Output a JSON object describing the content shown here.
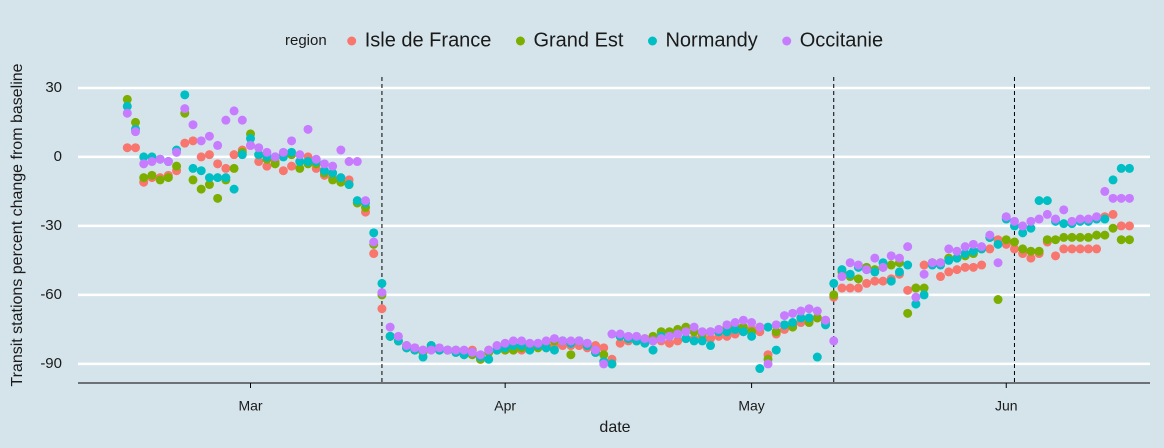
{
  "chart_data": {
    "type": "scatter",
    "xlabel": "date",
    "ylabel": "Transit stations percent change from baseline",
    "legend_title": "region",
    "x": [
      -15,
      -14,
      -13,
      -12,
      -11,
      -10,
      -9,
      -8,
      -7,
      -6,
      -5,
      -4,
      -3,
      -2,
      -1,
      0,
      1,
      2,
      3,
      4,
      5,
      6,
      7,
      8,
      9,
      10,
      11,
      12,
      13,
      14,
      15,
      16,
      17,
      18,
      19,
      20,
      21,
      22,
      23,
      24,
      25,
      26,
      27,
      28,
      29,
      30,
      31,
      32,
      33,
      34,
      35,
      36,
      37,
      38,
      39,
      40,
      41,
      42,
      43,
      44,
      45,
      46,
      47,
      48,
      49,
      50,
      51,
      52,
      53,
      54,
      55,
      56,
      57,
      58,
      59,
      60,
      61,
      62,
      63,
      64,
      65,
      66,
      67,
      68,
      69,
      70,
      71,
      72,
      73,
      74,
      75,
      76,
      77,
      78,
      79,
      80,
      81,
      82,
      83,
      84,
      85,
      86,
      87,
      88,
      89,
      90,
      91,
      92,
      93,
      94,
      95,
      96,
      97,
      98,
      99,
      100,
      101,
      102,
      103,
      104,
      105,
      106,
      107
    ],
    "series": [
      {
        "name": "Isle de France",
        "color": "#F8766D",
        "values": [
          4,
          4,
          -11,
          -9,
          -9,
          -8,
          -6,
          6,
          7,
          0,
          1,
          -3,
          -5,
          1,
          3,
          5,
          -2,
          -4,
          -2,
          -6,
          -4,
          -2,
          0,
          -5,
          -8,
          -9,
          -10,
          -10,
          -20,
          -24,
          -42,
          -66,
          -78,
          -80,
          -82,
          -83,
          -84,
          -83,
          -84,
          -84,
          -85,
          -86,
          -84,
          -88,
          -84,
          -84,
          -84,
          -84,
          -84,
          -83,
          -82,
          -83,
          -82,
          -82,
          -82,
          -82,
          -83,
          -82,
          -83,
          -88,
          -81,
          -80,
          -80,
          -80,
          -80,
          -80,
          -81,
          -80,
          -79,
          -79,
          -78,
          -79,
          -78,
          -78,
          -77,
          -76,
          -75,
          -76,
          -86,
          -77,
          -75,
          -73,
          -72,
          -71,
          -70,
          -71,
          -61,
          -57,
          -57,
          -57,
          -55,
          -54,
          -54,
          -53,
          -51,
          -58,
          -57,
          -47,
          -46,
          -52,
          -50,
          -49,
          -48,
          -48,
          -47,
          -40,
          -36,
          -38,
          -40,
          -42,
          -44,
          -42,
          -37,
          -43,
          -40,
          -40,
          -40,
          -40,
          -40,
          -26,
          -25,
          -30,
          -30
        ]
      },
      {
        "name": "Grand Est",
        "color": "#7CAE00",
        "values": [
          25,
          15,
          -9,
          -8,
          -10,
          -9,
          -4,
          19,
          -10,
          -14,
          -12,
          -18,
          -10,
          -5,
          2,
          10,
          1,
          -1,
          -3,
          1,
          1,
          -5,
          -3,
          -3,
          -7,
          -10,
          -11,
          -12,
          -20,
          -22,
          -38,
          -60,
          -78,
          -80,
          -83,
          -84,
          -85,
          -82,
          -84,
          -84,
          -84,
          -85,
          -86,
          -88,
          -85,
          -84,
          -84,
          -84,
          -83,
          -82,
          -83,
          -82,
          -80,
          -80,
          -86,
          -80,
          -82,
          -85,
          -86,
          -90,
          -78,
          -79,
          -79,
          -79,
          -78,
          -76,
          -76,
          -75,
          -74,
          -76,
          -77,
          -76,
          -76,
          -74,
          -73,
          -74,
          -76,
          -74,
          -88,
          -76,
          -73,
          -74,
          -70,
          -72,
          -70,
          -72,
          -60,
          -50,
          -52,
          -53,
          -48,
          -49,
          -48,
          -47,
          -46,
          -68,
          -57,
          -57,
          -46,
          -46,
          -44,
          -44,
          -43,
          -42,
          -40,
          -35,
          -62,
          -36,
          -37,
          -40,
          -41,
          -41,
          -36,
          -36,
          -35,
          -35,
          -35,
          -35,
          -34,
          -34,
          -31,
          -36,
          -36
        ]
      },
      {
        "name": "Normandy",
        "color": "#00BFC4",
        "values": [
          22,
          12,
          0,
          0,
          -1,
          -2,
          3,
          27,
          -5,
          -6,
          -9,
          -9,
          -9,
          -14,
          1,
          8,
          1,
          0,
          0,
          0,
          2,
          -2,
          -2,
          -2,
          -6,
          -7,
          -9,
          -12,
          -19,
          -20,
          -33,
          -55,
          -78,
          -80,
          -83,
          -84,
          -87,
          -82,
          -84,
          -84,
          -85,
          -86,
          -85,
          -87,
          -88,
          -84,
          -83,
          -82,
          -82,
          -84,
          -82,
          -83,
          -84,
          -80,
          -81,
          -80,
          -82,
          -85,
          -89,
          -90,
          -78,
          -79,
          -80,
          -81,
          -84,
          -78,
          -78,
          -77,
          -79,
          -80,
          -80,
          -82,
          -76,
          -76,
          -75,
          -76,
          -78,
          -92,
          -74,
          -84,
          -73,
          -72,
          -70,
          -70,
          -87,
          -73,
          -55,
          -49,
          -51,
          -48,
          -49,
          -50,
          -46,
          -54,
          -50,
          -47,
          -64,
          -60,
          -47,
          -47,
          -45,
          -44,
          -42,
          -41,
          -40,
          -35,
          -38,
          -27,
          -30,
          -33,
          -31,
          -19,
          -19,
          -28,
          -29,
          -29,
          -28,
          -28,
          -27,
          -27,
          -10,
          -5,
          -5
        ]
      },
      {
        "name": "Occitanie",
        "color": "#C77CFF",
        "values": [
          19,
          11,
          -3,
          -2,
          -1,
          -2,
          2,
          21,
          14,
          7,
          9,
          5,
          16,
          20,
          16,
          5,
          4,
          2,
          0,
          2,
          7,
          1,
          12,
          -1,
          -3,
          -4,
          3,
          -2,
          -2,
          -19,
          -37,
          -59,
          -74,
          -78,
          -82,
          -83,
          -84,
          -84,
          -83,
          -84,
          -84,
          -84,
          -85,
          -86,
          -84,
          -82,
          -81,
          -80,
          -80,
          -81,
          -81,
          -80,
          -79,
          -80,
          -80,
          -80,
          -81,
          -84,
          -90,
          -77,
          -77,
          -78,
          -78,
          -79,
          -80,
          -79,
          -78,
          -77,
          -76,
          -74,
          -76,
          -76,
          -75,
          -73,
          -72,
          -71,
          -72,
          -74,
          -90,
          -73,
          -69,
          -68,
          -67,
          -66,
          -67,
          -71,
          -80,
          -52,
          -46,
          -47,
          -49,
          -44,
          -48,
          -43,
          -44,
          -39,
          -61,
          -51,
          -46,
          -46,
          -40,
          -41,
          -39,
          -38,
          -39,
          -34,
          -46,
          -26,
          -28,
          -30,
          -28,
          -27,
          -25,
          -27,
          -23,
          -28,
          -27,
          -27,
          -26,
          -15,
          -18,
          -18,
          -18
        ]
      }
    ],
    "xlim": [
      -21,
      109.5
    ],
    "xticks": [
      {
        "value": 0,
        "label": "Mar"
      },
      {
        "value": 31,
        "label": "Apr"
      },
      {
        "value": 61,
        "label": "May"
      },
      {
        "value": 92,
        "label": "Jun"
      }
    ],
    "ylim": [
      -98.3,
      37.8
    ],
    "yticks": [
      -90,
      -60,
      -30,
      0,
      30
    ],
    "vlines": [
      16,
      71,
      93
    ],
    "grid": true
  }
}
